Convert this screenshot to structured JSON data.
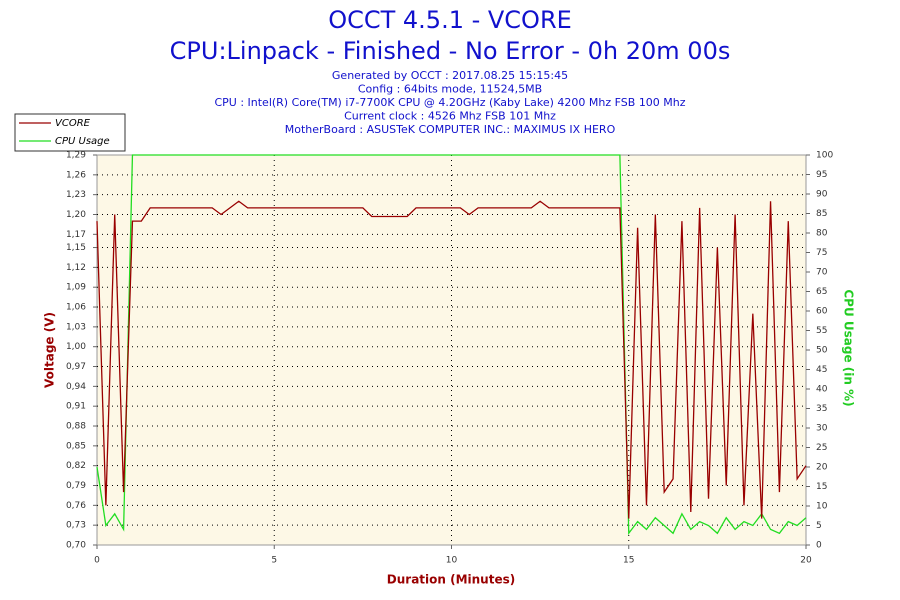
{
  "chart_data": {
    "type": "line",
    "title": "OCCT 4.5.1 - VCORE",
    "subtitle": "CPU:Linpack - Finished - No Error - 0h 20m 00s",
    "notes": [
      "Generated by OCCT : 2017.08.25 15:15:45",
      "Config : 64bits mode, 11524,5MB",
      "CPU : Intel(R) Core(TM) i7-7700K CPU @ 4.20GHz (Kaby Lake) 4200 Mhz FSB 100 Mhz",
      "Current clock : 4526 Mhz FSB 101 Mhz",
      "MotherBoard : ASUSTeK COMPUTER INC.: MAXIMUS IX HERO"
    ],
    "x_label": "Duration (Minutes)",
    "y_label": "Voltage (V)",
    "y2_label": "CPU Usage (in %)",
    "legend": "top-left",
    "grid": true,
    "xlim": [
      0,
      20
    ],
    "xticks": [
      0,
      5,
      10,
      15,
      20
    ],
    "ylim": [
      0.7,
      1.29
    ],
    "yticks": [
      {
        "value": 0.7,
        "label": "0,70"
      },
      {
        "value": 0.73,
        "label": "0,73"
      },
      {
        "value": 0.76,
        "label": "0,76"
      },
      {
        "value": 0.79,
        "label": "0,79"
      },
      {
        "value": 0.82,
        "label": "0,82"
      },
      {
        "value": 0.85,
        "label": "0,85"
      },
      {
        "value": 0.88,
        "label": "0,88"
      },
      {
        "value": 0.91,
        "label": "0,91"
      },
      {
        "value": 0.94,
        "label": "0,94"
      },
      {
        "value": 0.97,
        "label": "0,97"
      },
      {
        "value": 1.0,
        "label": "1,00"
      },
      {
        "value": 1.03,
        "label": "1,03"
      },
      {
        "value": 1.06,
        "label": "1,06"
      },
      {
        "value": 1.09,
        "label": "1,09"
      },
      {
        "value": 1.12,
        "label": "1,12"
      },
      {
        "value": 1.15,
        "label": "1,15"
      },
      {
        "value": 1.17,
        "label": "1,17"
      },
      {
        "value": 1.2,
        "label": "1,20"
      },
      {
        "value": 1.23,
        "label": "1,23"
      },
      {
        "value": 1.26,
        "label": "1,26"
      },
      {
        "value": 1.29,
        "label": "1,29"
      }
    ],
    "y2lim": [
      0,
      100
    ],
    "y2ticks": [
      0,
      5,
      10,
      15,
      20,
      25,
      30,
      35,
      40,
      45,
      50,
      55,
      60,
      65,
      70,
      75,
      80,
      85,
      90,
      95,
      100
    ],
    "x": [
      0,
      0.25,
      0.5,
      0.75,
      1,
      1.25,
      1.5,
      1.75,
      2,
      2.25,
      2.5,
      2.75,
      3,
      3.25,
      3.5,
      3.75,
      4,
      4.25,
      4.5,
      4.75,
      5,
      5.25,
      5.5,
      5.75,
      6,
      6.25,
      6.5,
      6.75,
      7,
      7.25,
      7.5,
      7.75,
      8,
      8.25,
      8.5,
      8.75,
      9,
      9.25,
      9.5,
      9.75,
      10,
      10.25,
      10.5,
      10.75,
      11,
      11.25,
      11.5,
      11.75,
      12,
      12.25,
      12.5,
      12.75,
      13,
      13.25,
      13.5,
      13.75,
      14,
      14.25,
      14.5,
      14.75,
      15,
      15.25,
      15.5,
      15.75,
      16,
      16.25,
      16.5,
      16.75,
      17,
      17.25,
      17.5,
      17.75,
      18,
      18.25,
      18.5,
      18.75,
      19,
      19.25,
      19.5,
      19.75,
      20
    ],
    "series": [
      {
        "name": "VCORE",
        "color": "#990000",
        "values": [
          1.19,
          0.76,
          1.2,
          0.78,
          1.19,
          1.19,
          1.21,
          1.21,
          1.21,
          1.21,
          1.21,
          1.21,
          1.21,
          1.21,
          1.2,
          1.21,
          1.22,
          1.21,
          1.21,
          1.21,
          1.21,
          1.21,
          1.21,
          1.21,
          1.21,
          1.21,
          1.21,
          1.21,
          1.21,
          1.21,
          1.21,
          1.197,
          1.197,
          1.197,
          1.197,
          1.197,
          1.21,
          1.21,
          1.21,
          1.21,
          1.21,
          1.21,
          1.2,
          1.21,
          1.21,
          1.21,
          1.21,
          1.21,
          1.21,
          1.21,
          1.22,
          1.21,
          1.21,
          1.21,
          1.21,
          1.21,
          1.21,
          1.21,
          1.21,
          1.21,
          0.74,
          1.18,
          0.76,
          1.2,
          0.78,
          0.8,
          1.19,
          0.75,
          1.21,
          0.77,
          1.15,
          0.79,
          1.2,
          0.76,
          1.05,
          0.74,
          1.22,
          0.78,
          1.19,
          0.8,
          0.82
        ]
      },
      {
        "name": "CPU Usage",
        "color": "#22dd22",
        "axis": "y2",
        "values": [
          20,
          5,
          8,
          4,
          100,
          100,
          100,
          100,
          100,
          100,
          100,
          100,
          100,
          100,
          100,
          100,
          100,
          100,
          100,
          100,
          100,
          100,
          100,
          100,
          100,
          100,
          100,
          100,
          100,
          100,
          100,
          100,
          100,
          100,
          100,
          100,
          100,
          100,
          100,
          100,
          100,
          100,
          100,
          100,
          100,
          100,
          100,
          100,
          100,
          100,
          100,
          100,
          100,
          100,
          100,
          100,
          100,
          100,
          100,
          100,
          3,
          6,
          4,
          7,
          5,
          3,
          8,
          4,
          6,
          5,
          3,
          7,
          4,
          6,
          5,
          8,
          4,
          3,
          6,
          5,
          7
        ]
      }
    ]
  }
}
